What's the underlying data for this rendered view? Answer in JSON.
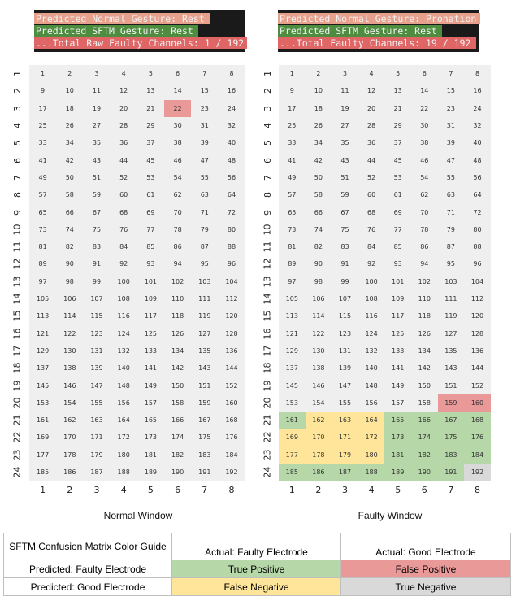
{
  "colors": {
    "cell_default": "#efefef",
    "true_positive": "#b6d7a8",
    "false_positive": "#ea9999",
    "false_negative": "#ffe599",
    "true_negative": "#d9d9d9",
    "term_bg": "#1a1a1a",
    "term_green": "#4e8c3f",
    "term_red": "#e06666",
    "term_salmon": "#e6a08c"
  },
  "panels": [
    {
      "title": "Normal Window",
      "terminal": [
        {
          "text": "Predicted Normal Gesture: Rest",
          "bg": "#e6a08c"
        },
        {
          "text": "Predicted SFTM Gesture: Rest",
          "bg": "#4e8c3f"
        },
        {
          "text": "...Total Raw Faulty Channels: 1 / 192",
          "bg": "#e06666"
        }
      ],
      "highlights": {
        "22": "#ea9999"
      }
    },
    {
      "title": "Faulty Window",
      "terminal": [
        {
          "text": "Predicted Normal Gesture: Pronation",
          "bg": "#e6a08c"
        },
        {
          "text": "Predicted SFTM Gesture: Rest",
          "bg": "#4e8c3f"
        },
        {
          "text": "...Total Faulty Channels: 19 / 192",
          "bg": "#e06666"
        }
      ],
      "highlights": {
        "159": "#ea9999",
        "160": "#ea9999",
        "161": "#b6d7a8",
        "162": "#ffe599",
        "163": "#ffe599",
        "164": "#ffe599",
        "165": "#b6d7a8",
        "166": "#b6d7a8",
        "167": "#b6d7a8",
        "168": "#b6d7a8",
        "169": "#ffe599",
        "170": "#ffe599",
        "171": "#ffe599",
        "172": "#ffe599",
        "173": "#b6d7a8",
        "174": "#b6d7a8",
        "175": "#b6d7a8",
        "176": "#b6d7a8",
        "177": "#ffe599",
        "178": "#ffe599",
        "179": "#ffe599",
        "180": "#ffe599",
        "181": "#b6d7a8",
        "182": "#b6d7a8",
        "183": "#b6d7a8",
        "184": "#b6d7a8",
        "185": "#b6d7a8",
        "186": "#b6d7a8",
        "187": "#b6d7a8",
        "188": "#b6d7a8",
        "189": "#b6d7a8",
        "190": "#b6d7a8",
        "191": "#b6d7a8",
        "192": "#d9d9d9"
      }
    }
  ],
  "grid": {
    "rows": 24,
    "cols": 8
  },
  "legend": {
    "title": "SFTM Confusion Matrix Color Guide",
    "actual_faulty": "Actual: Faulty Electrode",
    "actual_good": "Actual: Good Electrode",
    "pred_faulty": "Predicted: Faulty Electrode",
    "pred_good": "Predicted: Good Electrode",
    "tp": "True Positive",
    "fp": "False Positive",
    "fn": "False Negative",
    "tn": "True Negative"
  }
}
